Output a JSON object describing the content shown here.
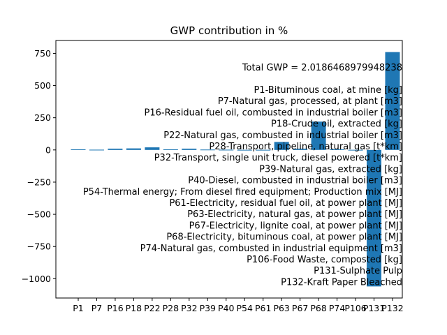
{
  "chart_data": {
    "type": "bar",
    "title": "GWP contribution in %",
    "xlabel": "",
    "ylabel": "",
    "ylim": [
      -1150,
      850
    ],
    "yticks": [
      -1000,
      -750,
      -500,
      -250,
      0,
      250,
      500,
      750
    ],
    "ytick_labels": [
      "−1000",
      "−750",
      "−500",
      "−250",
      "0",
      "250",
      "500",
      "750"
    ],
    "bar_color": "#1f77b4",
    "categories": [
      "P1",
      "P7",
      "P16",
      "P18",
      "P22",
      "P28",
      "P32",
      "P39",
      "P40",
      "P54",
      "P61",
      "P63",
      "P67",
      "P68",
      "P74",
      "P106",
      "P131",
      "P132"
    ],
    "values": [
      5,
      2,
      10,
      12,
      20,
      5,
      10,
      3,
      2,
      1,
      1,
      62,
      10,
      220,
      5,
      1,
      -1060,
      760
    ],
    "annotation": "Total GWP = 2.0186468979948238",
    "legend_position": "right",
    "legend_entries": [
      "P1-Bituminous coal, at mine [kg]",
      "P7-Natural gas, processed, at plant [m3]",
      "P16-Residual fuel oil, combusted in industrial boiler [m3]",
      "P18-Crude oil, extracted [kg]",
      "P22-Natural gas, combusted in industrial boiler [m3]",
      "P28-Transport, pipeline, natural gas [t*km]",
      "P32-Transport, single unit truck, diesel powered [t*km]",
      "P39-Natural gas, extracted [kg]",
      "P40-Diesel, combusted in industrial boiler [m3]",
      "P54-Thermal energy; From diesel fired equipment; Production mix [MJ]",
      "P61-Electricity, residual fuel oil, at power plant [MJ]",
      "P63-Electricity, natural gas, at power plant [MJ]",
      "P67-Electricity, lignite coal, at power plant [MJ]",
      "P68-Electricity, bituminous coal, at power plant [MJ]",
      "P74-Natural gas, combusted in industrial equipment [m3]",
      "P106-Food Waste, composted [kg]",
      "P131-Sulphate Pulp",
      "P132-Kraft Paper Bleached"
    ]
  }
}
